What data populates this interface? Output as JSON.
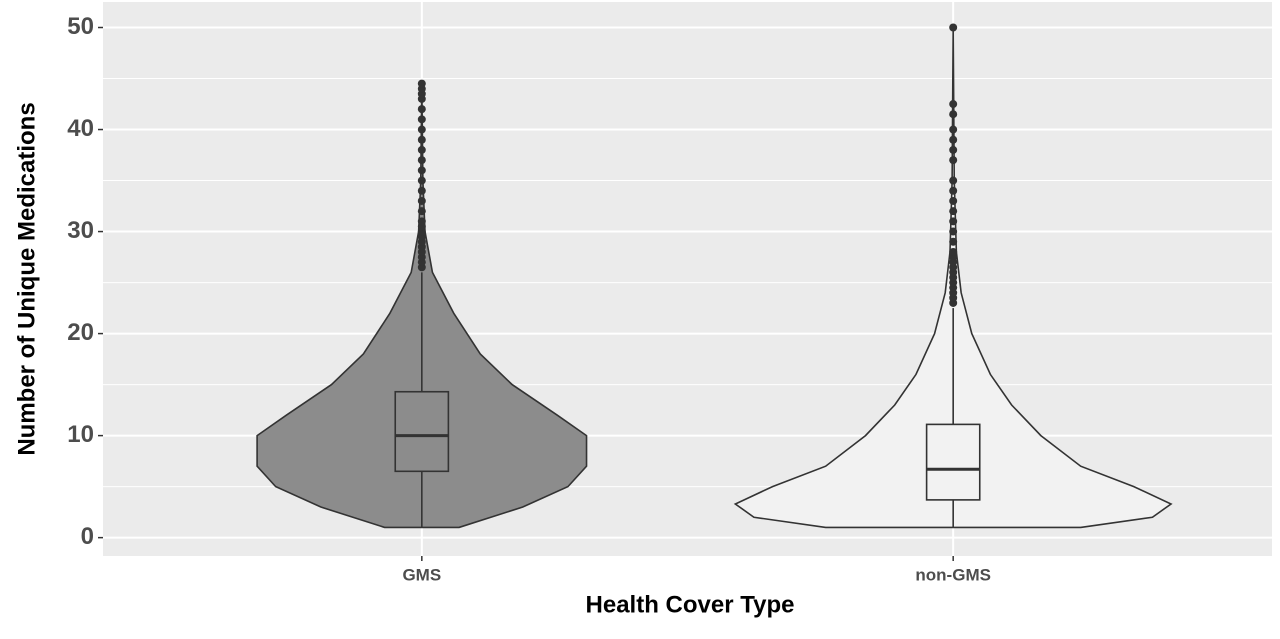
{
  "chart_data": {
    "type": "violin",
    "x_label": "Health Cover Type",
    "y_label": "Number of Unique Medications",
    "categories": [
      "GMS",
      "non-GMS"
    ],
    "ylim": [
      -1.8,
      52.5
    ],
    "yticks": [
      0,
      10,
      20,
      30,
      40,
      50
    ],
    "y_minor_ticks": [
      5,
      15,
      25,
      35,
      45
    ],
    "grid": true,
    "violins": [
      {
        "fill": "#8c8c8c",
        "density_y": [
          1,
          3,
          5,
          7,
          8.5,
          10,
          12,
          15,
          18,
          22,
          26,
          30,
          35,
          44.5
        ],
        "density_width": [
          0.14,
          0.38,
          0.55,
          0.62,
          0.62,
          0.62,
          0.51,
          0.34,
          0.22,
          0.12,
          0.04,
          0.012,
          0.004,
          0
        ],
        "whisker_low": 1,
        "q1": 6.5,
        "median": 10,
        "q3": 14.3,
        "whisker_high": 26,
        "outliers": [
          26.5,
          27,
          27.5,
          28,
          28.5,
          29,
          29.5,
          30,
          30.5,
          31,
          32,
          33,
          34,
          35,
          36,
          37,
          38,
          39,
          40,
          41,
          42,
          43,
          43.5,
          44,
          44.5
        ]
      },
      {
        "fill": "#f2f2f2",
        "density_y": [
          1,
          2,
          3.3,
          5,
          7,
          10,
          13,
          16,
          20,
          24,
          28,
          35,
          50
        ],
        "density_width": [
          0.48,
          0.75,
          0.82,
          0.68,
          0.48,
          0.33,
          0.22,
          0.14,
          0.07,
          0.03,
          0.012,
          0.004,
          0
        ],
        "whisker_low": 1,
        "q1": 3.7,
        "median": 6.7,
        "q3": 11.1,
        "whisker_high": 22.5,
        "outliers": [
          23,
          23.5,
          24,
          24.5,
          25,
          25.5,
          26,
          26.5,
          27,
          27.5,
          28,
          29,
          30,
          31,
          32,
          33,
          34,
          35,
          37,
          38,
          39,
          40,
          41.5,
          42.5,
          50
        ]
      }
    ]
  }
}
